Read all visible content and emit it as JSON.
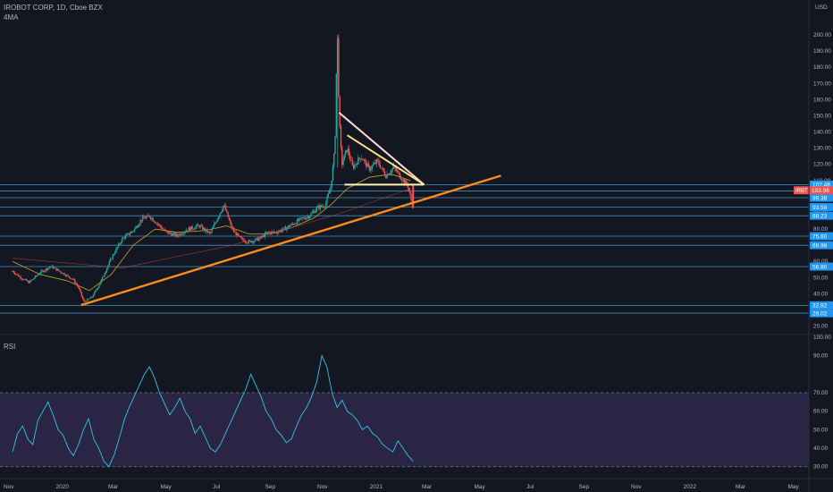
{
  "header": {
    "title": "IROBOT CORP, 1D, Cboe BZX",
    "indicator": "4MA",
    "currency": "USD"
  },
  "rsi_label": "RSI",
  "chart_data": [
    {
      "type": "candlestick",
      "name": "IRBT",
      "last_price": "103.96",
      "ylim": [
        17,
        205
      ],
      "y_ticks": [
        20,
        30,
        40,
        50,
        60,
        70,
        80,
        90,
        100,
        110,
        120,
        130,
        140,
        150,
        160,
        170,
        180,
        190,
        200
      ],
      "y_tick_labels": [
        "20.00",
        "30.00",
        "40.00",
        "50.00",
        "60.00",
        "",
        "80.00",
        "90.00",
        "100.00",
        "110.00",
        "120.00",
        "130.00",
        "140.00",
        "150.00",
        "160.00",
        "170.00",
        "180.00",
        "190.00",
        "200.00"
      ],
      "x_tick_labels": [
        "Nov",
        "2020",
        "Mar",
        "May",
        "Jul",
        "Sep",
        "Nov",
        "2021",
        "Mar",
        "May",
        "Jul",
        "Sep",
        "Nov",
        "2022",
        "Mar",
        "May"
      ],
      "horizontal_levels": [
        {
          "value": 107.48,
          "label": "107.48"
        },
        {
          "value": 103.56,
          "label": "103.56"
        },
        {
          "value": 99.38,
          "label": "99.38"
        },
        {
          "value": 93.58,
          "label": "93.58"
        },
        {
          "value": 88.23,
          "label": "88.23"
        },
        {
          "value": 75.6,
          "label": "75.60"
        },
        {
          "value": 69.98,
          "label": "69.98"
        },
        {
          "value": 56.8,
          "label": "56.80"
        },
        {
          "value": 32.82,
          "label": "32.82"
        },
        {
          "value": 28.02,
          "label": "28.02"
        }
      ],
      "price_path": [
        [
          0,
          54
        ],
        [
          0.03,
          50
        ],
        [
          0.06,
          47
        ],
        [
          0.1,
          53
        ],
        [
          0.14,
          57
        ],
        [
          0.18,
          53
        ],
        [
          0.22,
          49
        ],
        [
          0.24,
          44
        ],
        [
          0.26,
          35
        ],
        [
          0.29,
          38
        ],
        [
          0.32,
          47
        ],
        [
          0.36,
          62
        ],
        [
          0.4,
          74
        ],
        [
          0.44,
          79
        ],
        [
          0.47,
          86
        ],
        [
          0.5,
          88
        ],
        [
          0.53,
          83
        ],
        [
          0.56,
          78
        ],
        [
          0.6,
          76
        ],
        [
          0.64,
          80
        ],
        [
          0.68,
          82
        ],
        [
          0.72,
          77
        ],
        [
          0.75,
          88
        ],
        [
          0.77,
          95
        ],
        [
          0.8,
          80
        ],
        [
          0.83,
          74
        ],
        [
          0.86,
          72
        ],
        [
          0.9,
          74
        ],
        [
          0.93,
          78
        ],
        [
          0.96,
          78
        ],
        [
          0.99,
          80
        ],
        [
          1.02,
          83
        ],
        [
          1.05,
          86
        ],
        [
          1.08,
          88
        ],
        [
          1.11,
          93
        ],
        [
          1.14,
          95
        ],
        [
          1.16,
          106
        ],
        [
          1.175,
          130
        ],
        [
          1.18,
          175
        ],
        [
          1.185,
          200
        ],
        [
          1.19,
          150
        ],
        [
          1.2,
          120
        ],
        [
          1.22,
          130
        ],
        [
          1.24,
          118
        ],
        [
          1.27,
          125
        ],
        [
          1.3,
          117
        ],
        [
          1.33,
          122
        ],
        [
          1.36,
          113
        ],
        [
          1.39,
          118
        ],
        [
          1.42,
          111
        ],
        [
          1.44,
          107
        ],
        [
          1.45,
          100
        ],
        [
          1.46,
          93
        ]
      ],
      "ma_path": [
        [
          0,
          60
        ],
        [
          0.1,
          52
        ],
        [
          0.2,
          48
        ],
        [
          0.28,
          42
        ],
        [
          0.36,
          52
        ],
        [
          0.44,
          70
        ],
        [
          0.52,
          80
        ],
        [
          0.6,
          78
        ],
        [
          0.7,
          79
        ],
        [
          0.78,
          82
        ],
        [
          0.86,
          77
        ],
        [
          0.94,
          77
        ],
        [
          1.02,
          81
        ],
        [
          1.1,
          87
        ],
        [
          1.16,
          95
        ],
        [
          1.22,
          105
        ],
        [
          1.3,
          112
        ],
        [
          1.38,
          114
        ],
        [
          1.45,
          110
        ]
      ],
      "drawings": [
        {
          "name": "ascending-trendline",
          "color": "#ff8c1a",
          "from": [
            0.25,
            33
          ],
          "to": [
            1.78,
            113
          ]
        },
        {
          "name": "triangle-upper-line",
          "color": "#ffd7d7",
          "from": [
            1.19,
            152
          ],
          "to": [
            1.5,
            107.5
          ]
        },
        {
          "name": "triangle-inner-line",
          "color": "#ffe082",
          "from": [
            1.22,
            138
          ],
          "to": [
            1.5,
            107.5
          ]
        },
        {
          "name": "triangle-base-line",
          "color": "#fff3b0",
          "from": [
            1.21,
            107.48
          ],
          "to": [
            1.5,
            107.48
          ]
        }
      ]
    },
    {
      "type": "line",
      "name": "RSI",
      "ylim": [
        26,
        100
      ],
      "y_ticks": [
        30,
        40,
        50,
        60,
        70,
        80,
        90,
        100
      ],
      "y_tick_labels": [
        "30.00",
        "40.00",
        "50.00",
        "60.00",
        "70.00",
        "",
        "90.00",
        "100.00"
      ],
      "band": [
        30,
        70
      ],
      "values": [
        38,
        48,
        52,
        45,
        42,
        55,
        60,
        65,
        58,
        50,
        47,
        40,
        36,
        42,
        50,
        56,
        45,
        40,
        33,
        30,
        36,
        45,
        55,
        62,
        68,
        74,
        80,
        84,
        78,
        70,
        64,
        58,
        62,
        67,
        60,
        56,
        48,
        52,
        46,
        40,
        38,
        42,
        48,
        54,
        60,
        66,
        72,
        80,
        74,
        68,
        60,
        56,
        50,
        47,
        43,
        45,
        52,
        58,
        62,
        68,
        76,
        90,
        84,
        70,
        62,
        66,
        60,
        58,
        55,
        50,
        52,
        48,
        46,
        42,
        40,
        38,
        44,
        40,
        36,
        33
      ]
    }
  ]
}
